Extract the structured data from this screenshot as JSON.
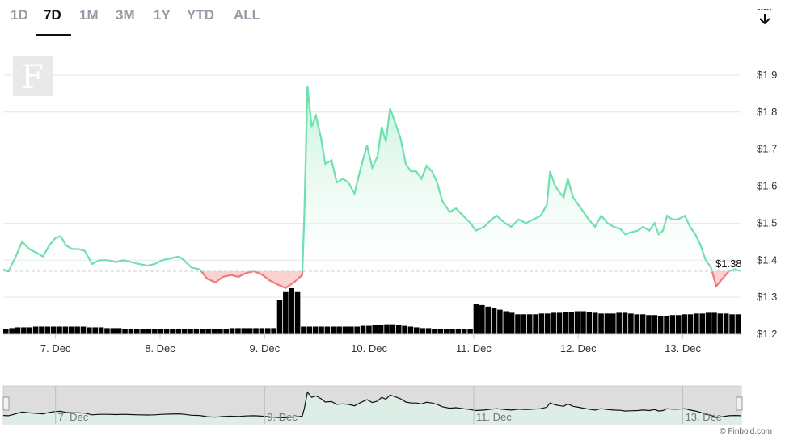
{
  "tabs": [
    {
      "label": "1D",
      "active": false
    },
    {
      "label": "7D",
      "active": true
    },
    {
      "label": "1M",
      "active": false
    },
    {
      "label": "3M",
      "active": false
    },
    {
      "label": "1Y",
      "active": false
    },
    {
      "label": "YTD",
      "active": false
    },
    {
      "label": "ALL",
      "active": false
    }
  ],
  "download_icon": "download-arrow-icon",
  "watermark_logo": "F",
  "credit": "© Finbold.com",
  "current_price_label": "$1.38",
  "colors": {
    "up_line": "#6fe0ae",
    "up_fill": "#d8f6e8",
    "down_line": "#ef7a7a",
    "down_fill": "#f9d2d2",
    "volume": "#000000",
    "navigator_line": "#111111",
    "navigator_mask": "#dddddd"
  },
  "chart_data": {
    "type": "area",
    "reference_price": 1.37,
    "y_ticks": [
      "$1.2",
      "$1.3",
      "$1.4",
      "$1.5",
      "$1.6",
      "$1.7",
      "$1.8",
      "$1.9"
    ],
    "y_tick_values": [
      1.2,
      1.3,
      1.4,
      1.5,
      1.6,
      1.7,
      1.8,
      1.9
    ],
    "ylim": [
      1.2,
      1.95
    ],
    "x_ticks": [
      "7. Dec",
      "8. Dec",
      "9. Dec",
      "10. Dec",
      "11. Dec",
      "12. Dec",
      "13. Dec"
    ],
    "x_tick_days": [
      0.5,
      1.5,
      2.5,
      3.5,
      4.5,
      5.5,
      6.5
    ],
    "xlim_days": [
      0,
      7.06
    ],
    "navigator_x_ticks": [
      "7. Dec",
      "9. Dec",
      "11. Dec",
      "13. Dec"
    ],
    "navigator_x_tick_days": [
      0.5,
      2.5,
      4.5,
      6.5
    ],
    "price_points": [
      [
        0.0,
        1.375
      ],
      [
        0.05,
        1.37
      ],
      [
        0.12,
        1.41
      ],
      [
        0.18,
        1.45
      ],
      [
        0.25,
        1.43
      ],
      [
        0.32,
        1.42
      ],
      [
        0.38,
        1.41
      ],
      [
        0.44,
        1.44
      ],
      [
        0.5,
        1.46
      ],
      [
        0.55,
        1.465
      ],
      [
        0.6,
        1.44
      ],
      [
        0.66,
        1.43
      ],
      [
        0.72,
        1.43
      ],
      [
        0.78,
        1.425
      ],
      [
        0.85,
        1.39
      ],
      [
        0.92,
        1.4
      ],
      [
        1.0,
        1.4
      ],
      [
        1.08,
        1.395
      ],
      [
        1.15,
        1.4
      ],
      [
        1.22,
        1.395
      ],
      [
        1.3,
        1.39
      ],
      [
        1.38,
        1.385
      ],
      [
        1.45,
        1.39
      ],
      [
        1.52,
        1.4
      ],
      [
        1.6,
        1.405
      ],
      [
        1.68,
        1.41
      ],
      [
        1.73,
        1.4
      ],
      [
        1.8,
        1.38
      ],
      [
        1.88,
        1.375
      ],
      [
        1.95,
        1.35
      ],
      [
        2.03,
        1.34
      ],
      [
        2.1,
        1.355
      ],
      [
        2.18,
        1.36
      ],
      [
        2.25,
        1.355
      ],
      [
        2.32,
        1.365
      ],
      [
        2.4,
        1.37
      ],
      [
        2.48,
        1.36
      ],
      [
        2.55,
        1.345
      ],
      [
        2.62,
        1.335
      ],
      [
        2.7,
        1.325
      ],
      [
        2.78,
        1.34
      ],
      [
        2.86,
        1.36
      ],
      [
        2.88,
        1.52
      ],
      [
        2.91,
        1.87
      ],
      [
        2.95,
        1.76
      ],
      [
        2.99,
        1.79
      ],
      [
        3.04,
        1.73
      ],
      [
        3.08,
        1.66
      ],
      [
        3.14,
        1.67
      ],
      [
        3.19,
        1.61
      ],
      [
        3.25,
        1.62
      ],
      [
        3.3,
        1.61
      ],
      [
        3.36,
        1.58
      ],
      [
        3.42,
        1.65
      ],
      [
        3.48,
        1.71
      ],
      [
        3.53,
        1.65
      ],
      [
        3.58,
        1.68
      ],
      [
        3.62,
        1.76
      ],
      [
        3.66,
        1.72
      ],
      [
        3.7,
        1.81
      ],
      [
        3.75,
        1.77
      ],
      [
        3.8,
        1.73
      ],
      [
        3.85,
        1.66
      ],
      [
        3.9,
        1.64
      ],
      [
        3.95,
        1.64
      ],
      [
        4.0,
        1.62
      ],
      [
        4.05,
        1.655
      ],
      [
        4.1,
        1.64
      ],
      [
        4.15,
        1.61
      ],
      [
        4.2,
        1.56
      ],
      [
        4.27,
        1.53
      ],
      [
        4.33,
        1.54
      ],
      [
        4.4,
        1.52
      ],
      [
        4.47,
        1.5
      ],
      [
        4.52,
        1.48
      ],
      [
        4.6,
        1.49
      ],
      [
        4.67,
        1.51
      ],
      [
        4.72,
        1.52
      ],
      [
        4.8,
        1.5
      ],
      [
        4.86,
        1.49
      ],
      [
        4.93,
        1.51
      ],
      [
        5.0,
        1.5
      ],
      [
        5.07,
        1.51
      ],
      [
        5.14,
        1.52
      ],
      [
        5.2,
        1.55
      ],
      [
        5.23,
        1.64
      ],
      [
        5.28,
        1.6
      ],
      [
        5.33,
        1.58
      ],
      [
        5.36,
        1.57
      ],
      [
        5.4,
        1.62
      ],
      [
        5.45,
        1.57
      ],
      [
        5.5,
        1.55
      ],
      [
        5.55,
        1.53
      ],
      [
        5.6,
        1.51
      ],
      [
        5.66,
        1.49
      ],
      [
        5.72,
        1.52
      ],
      [
        5.78,
        1.5
      ],
      [
        5.84,
        1.49
      ],
      [
        5.9,
        1.485
      ],
      [
        5.95,
        1.47
      ],
      [
        6.0,
        1.475
      ],
      [
        6.07,
        1.48
      ],
      [
        6.12,
        1.49
      ],
      [
        6.18,
        1.48
      ],
      [
        6.23,
        1.5
      ],
      [
        6.27,
        1.47
      ],
      [
        6.31,
        1.48
      ],
      [
        6.35,
        1.52
      ],
      [
        6.4,
        1.51
      ],
      [
        6.45,
        1.51
      ],
      [
        6.52,
        1.52
      ],
      [
        6.57,
        1.49
      ],
      [
        6.62,
        1.47
      ],
      [
        6.67,
        1.44
      ],
      [
        6.72,
        1.4
      ],
      [
        6.77,
        1.38
      ],
      [
        6.82,
        1.33
      ],
      [
        6.88,
        1.35
      ],
      [
        6.94,
        1.37
      ],
      [
        7.0,
        1.375
      ],
      [
        7.06,
        1.37
      ]
    ],
    "volume_heights": [
      0.07,
      0.08,
      0.09,
      0.09,
      0.09,
      0.1,
      0.1,
      0.1,
      0.1,
      0.1,
      0.1,
      0.1,
      0.1,
      0.1,
      0.09,
      0.09,
      0.09,
      0.08,
      0.08,
      0.08,
      0.07,
      0.07,
      0.07,
      0.07,
      0.07,
      0.07,
      0.07,
      0.07,
      0.07,
      0.07,
      0.07,
      0.07,
      0.07,
      0.07,
      0.07,
      0.07,
      0.07,
      0.07,
      0.08,
      0.08,
      0.08,
      0.08,
      0.08,
      0.08,
      0.08,
      0.08,
      0.45,
      0.55,
      0.6,
      0.55,
      0.1,
      0.1,
      0.1,
      0.1,
      0.1,
      0.1,
      0.1,
      0.1,
      0.1,
      0.1,
      0.11,
      0.11,
      0.12,
      0.12,
      0.13,
      0.13,
      0.12,
      0.11,
      0.1,
      0.09,
      0.08,
      0.08,
      0.07,
      0.07,
      0.07,
      0.07,
      0.07,
      0.07,
      0.07,
      0.4,
      0.38,
      0.36,
      0.34,
      0.32,
      0.3,
      0.28,
      0.26,
      0.26,
      0.26,
      0.26,
      0.27,
      0.27,
      0.28,
      0.28,
      0.29,
      0.29,
      0.3,
      0.3,
      0.29,
      0.28,
      0.27,
      0.27,
      0.27,
      0.28,
      0.28,
      0.27,
      0.26,
      0.26,
      0.25,
      0.25,
      0.24,
      0.24,
      0.25,
      0.25,
      0.26,
      0.26,
      0.27,
      0.27,
      0.28,
      0.28,
      0.27,
      0.27,
      0.26,
      0.26
    ]
  }
}
